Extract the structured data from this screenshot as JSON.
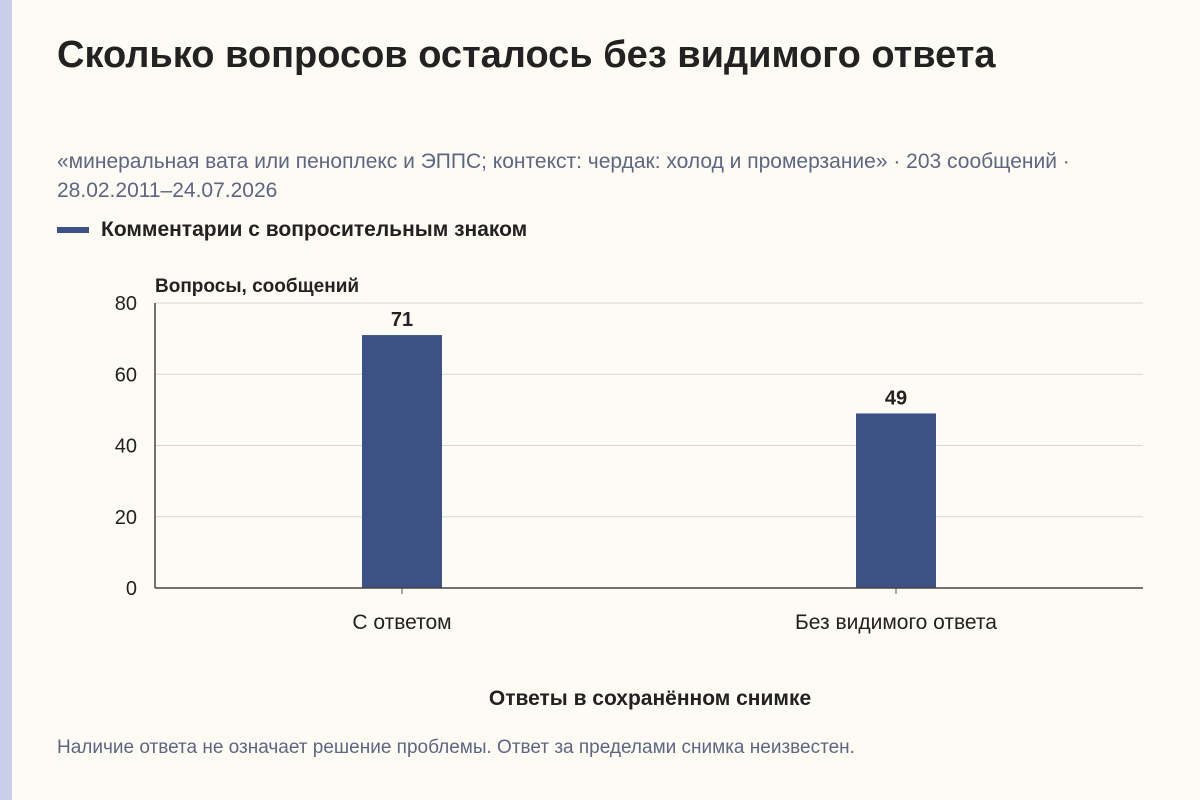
{
  "header": {
    "title": "Сколько вопросов осталось без видимого ответа",
    "subtitle": "«минеральная вата или пеноплекс и ЭППС; контекст: чердак: холод и промерзание» · 203 сообщений · 28.02.2011–24.07.2026"
  },
  "legend": {
    "label": "Комментарии с вопросительным знаком"
  },
  "footnote": "Наличие ответа не означает решение проблемы. Ответ за пределами снимка неизвестен.",
  "colors": {
    "bar": "#3c5186",
    "background": "#fdfbf3",
    "accent_strip": "#c9cfe9",
    "muted_text": "#5d6683"
  },
  "chart_data": {
    "type": "bar",
    "categories": [
      "С ответом",
      "Без видимого ответа"
    ],
    "series": [
      {
        "name": "Комментарии с вопросительным знаком",
        "values": [
          71,
          49
        ]
      }
    ],
    "xlabel": "Ответы в сохранённом снимке",
    "ylabel": "Вопросы, сообщений",
    "ylim": [
      0,
      80
    ],
    "yticks": [
      0,
      20,
      40,
      60,
      80
    ],
    "grid": true,
    "legend_position": "top-left",
    "data_labels": true
  }
}
